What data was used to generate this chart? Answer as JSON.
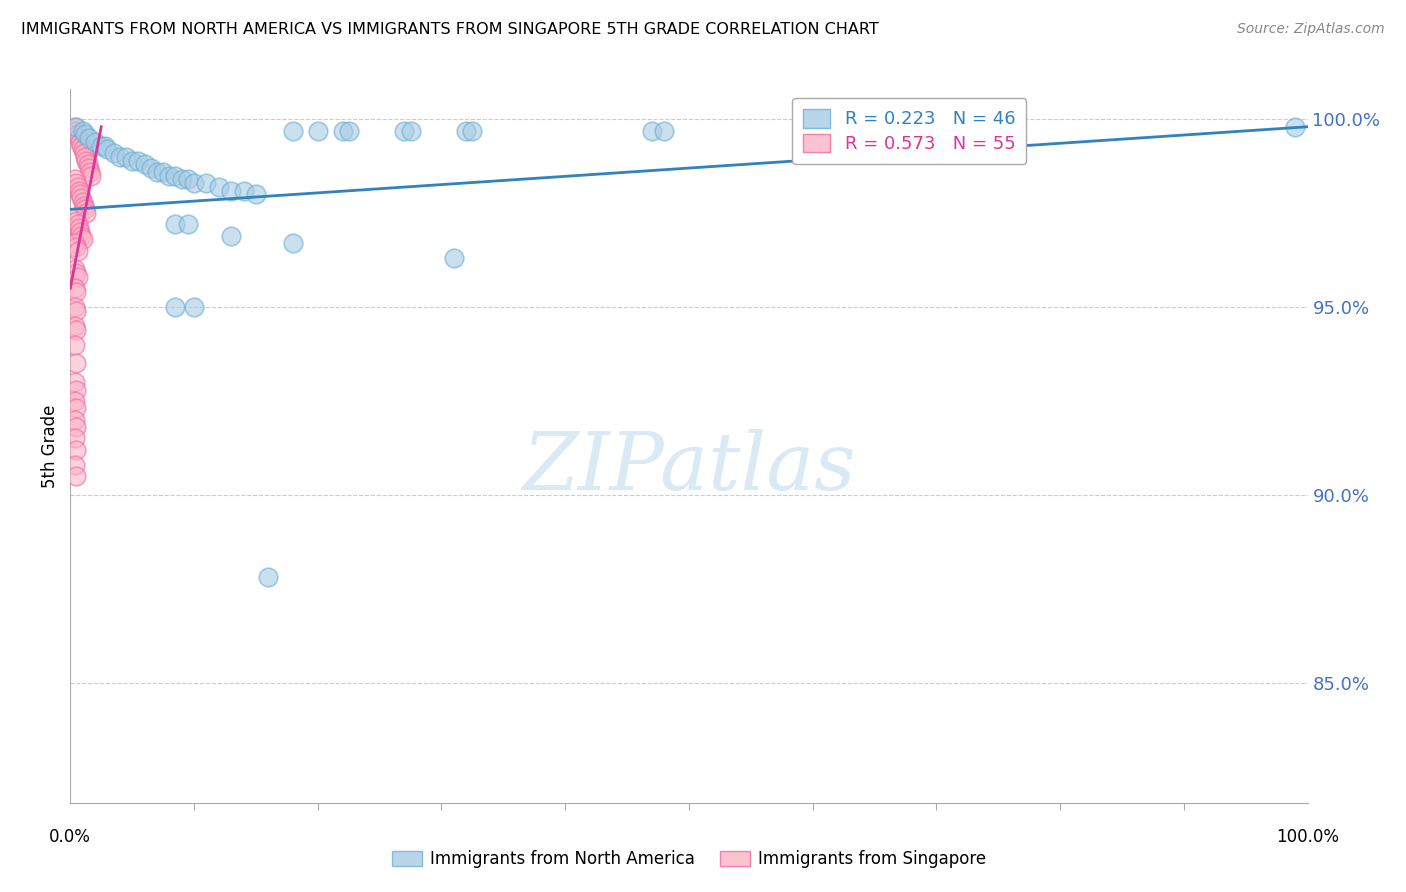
{
  "title": "IMMIGRANTS FROM NORTH AMERICA VS IMMIGRANTS FROM SINGAPORE 5TH GRADE CORRELATION CHART",
  "source": "Source: ZipAtlas.com",
  "ylabel": "5th Grade",
  "ytick_labels": [
    "100.0%",
    "95.0%",
    "90.0%",
    "85.0%"
  ],
  "ytick_values": [
    1.0,
    0.95,
    0.9,
    0.85
  ],
  "xlim": [
    0.0,
    1.0
  ],
  "ylim": [
    0.818,
    1.008
  ],
  "legend_blue_text": "R = 0.223   N = 46",
  "legend_pink_text": "R = 0.573   N = 55",
  "blue_color": "#a8cce4",
  "blue_edge_color": "#6baed6",
  "pink_color": "#fbb4c6",
  "pink_edge_color": "#f768a1",
  "blue_line_color": "#3182bd",
  "pink_line_color": "#dd3497",
  "watermark_color": "#daeaf5",
  "blue_points": [
    [
      0.005,
      0.998
    ],
    [
      0.01,
      0.997
    ],
    [
      0.012,
      0.996
    ],
    [
      0.015,
      0.995
    ],
    [
      0.02,
      0.994
    ],
    [
      0.025,
      0.993
    ],
    [
      0.028,
      0.993
    ],
    [
      0.03,
      0.992
    ],
    [
      0.035,
      0.991
    ],
    [
      0.04,
      0.99
    ],
    [
      0.045,
      0.99
    ],
    [
      0.05,
      0.989
    ],
    [
      0.055,
      0.989
    ],
    [
      0.06,
      0.988
    ],
    [
      0.065,
      0.987
    ],
    [
      0.07,
      0.986
    ],
    [
      0.075,
      0.986
    ],
    [
      0.08,
      0.985
    ],
    [
      0.085,
      0.985
    ],
    [
      0.09,
      0.984
    ],
    [
      0.095,
      0.984
    ],
    [
      0.1,
      0.983
    ],
    [
      0.11,
      0.983
    ],
    [
      0.12,
      0.982
    ],
    [
      0.13,
      0.981
    ],
    [
      0.14,
      0.981
    ],
    [
      0.15,
      0.98
    ],
    [
      0.18,
      0.997
    ],
    [
      0.2,
      0.997
    ],
    [
      0.22,
      0.997
    ],
    [
      0.225,
      0.997
    ],
    [
      0.27,
      0.997
    ],
    [
      0.275,
      0.997
    ],
    [
      0.32,
      0.997
    ],
    [
      0.325,
      0.997
    ],
    [
      0.47,
      0.997
    ],
    [
      0.48,
      0.997
    ],
    [
      0.99,
      0.998
    ],
    [
      0.085,
      0.972
    ],
    [
      0.095,
      0.972
    ],
    [
      0.13,
      0.969
    ],
    [
      0.18,
      0.967
    ],
    [
      0.31,
      0.963
    ],
    [
      0.085,
      0.95
    ],
    [
      0.1,
      0.95
    ],
    [
      0.16,
      0.878
    ]
  ],
  "pink_points": [
    [
      0.004,
      0.998
    ],
    [
      0.005,
      0.997
    ],
    [
      0.006,
      0.996
    ],
    [
      0.007,
      0.995
    ],
    [
      0.008,
      0.994
    ],
    [
      0.009,
      0.993
    ],
    [
      0.01,
      0.992
    ],
    [
      0.011,
      0.991
    ],
    [
      0.012,
      0.99
    ],
    [
      0.013,
      0.989
    ],
    [
      0.014,
      0.988
    ],
    [
      0.015,
      0.987
    ],
    [
      0.016,
      0.986
    ],
    [
      0.017,
      0.985
    ],
    [
      0.004,
      0.984
    ],
    [
      0.005,
      0.983
    ],
    [
      0.006,
      0.982
    ],
    [
      0.007,
      0.981
    ],
    [
      0.008,
      0.98
    ],
    [
      0.009,
      0.979
    ],
    [
      0.01,
      0.978
    ],
    [
      0.011,
      0.977
    ],
    [
      0.012,
      0.976
    ],
    [
      0.013,
      0.975
    ],
    [
      0.004,
      0.974
    ],
    [
      0.005,
      0.973
    ],
    [
      0.006,
      0.972
    ],
    [
      0.007,
      0.971
    ],
    [
      0.008,
      0.97
    ],
    [
      0.009,
      0.969
    ],
    [
      0.01,
      0.968
    ],
    [
      0.004,
      0.967
    ],
    [
      0.005,
      0.966
    ],
    [
      0.006,
      0.965
    ],
    [
      0.004,
      0.96
    ],
    [
      0.005,
      0.959
    ],
    [
      0.006,
      0.958
    ],
    [
      0.004,
      0.955
    ],
    [
      0.005,
      0.954
    ],
    [
      0.004,
      0.95
    ],
    [
      0.005,
      0.949
    ],
    [
      0.004,
      0.945
    ],
    [
      0.005,
      0.944
    ],
    [
      0.004,
      0.94
    ],
    [
      0.005,
      0.935
    ],
    [
      0.004,
      0.93
    ],
    [
      0.005,
      0.928
    ],
    [
      0.004,
      0.925
    ],
    [
      0.005,
      0.923
    ],
    [
      0.004,
      0.92
    ],
    [
      0.005,
      0.918
    ],
    [
      0.004,
      0.915
    ],
    [
      0.005,
      0.912
    ],
    [
      0.004,
      0.908
    ],
    [
      0.005,
      0.905
    ]
  ],
  "blue_line_x": [
    0.0,
    1.0
  ],
  "blue_line_y": [
    0.976,
    0.998
  ],
  "pink_line_x": [
    0.0,
    0.025
  ],
  "pink_line_y": [
    0.955,
    0.998
  ],
  "grid_color": "#cccccc",
  "spine_color": "#aaaaaa",
  "ytick_color": "#4472c4",
  "bottom_label_blue": "Immigrants from North America",
  "bottom_label_pink": "Immigrants from Singapore"
}
